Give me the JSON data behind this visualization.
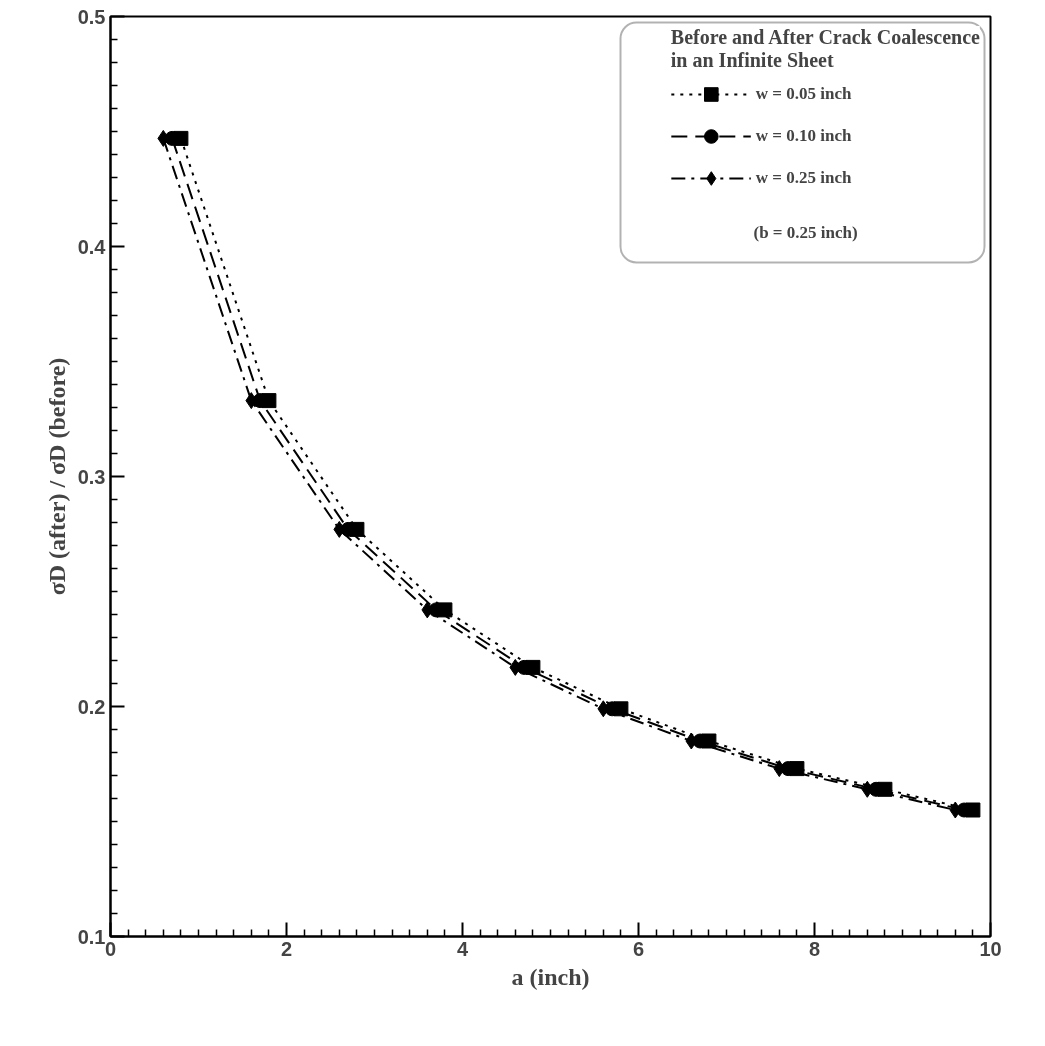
{
  "chart_data": {
    "type": "line",
    "xlabel": "a (inch)",
    "ylabel": "σD (after) / σD (before)",
    "legend_title": "Before and After Crack Coalescence\nin an Infinite Sheet",
    "annotations": [
      "(b = 0.25 inch)"
    ],
    "xlim": [
      0,
      10
    ],
    "ylim": [
      0.1,
      0.5
    ],
    "xticks": [
      0,
      2,
      4,
      6,
      8,
      10
    ],
    "yticks": [
      0.1,
      0.2,
      0.3,
      0.4,
      0.5
    ],
    "grid": false,
    "legend": "top right",
    "series": [
      {
        "name": "w = 0.05 inch",
        "color": "#000000",
        "marker": "square",
        "line_style": "dotted",
        "x": [
          0.8,
          1.8,
          2.8,
          3.8,
          4.8,
          5.8,
          6.8,
          7.8,
          8.8,
          9.8
        ],
        "values": [
          0.447,
          0.333,
          0.277,
          0.242,
          0.217,
          0.199,
          0.185,
          0.173,
          0.164,
          0.155
        ]
      },
      {
        "name": "w = 0.10 inch",
        "color": "#000000",
        "marker": "circle",
        "line_style": "dashed",
        "x": [
          0.7,
          1.7,
          2.7,
          3.7,
          4.7,
          5.7,
          6.7,
          7.7,
          8.7,
          9.7
        ],
        "values": [
          0.447,
          0.333,
          0.277,
          0.242,
          0.217,
          0.199,
          0.185,
          0.173,
          0.164,
          0.155
        ]
      },
      {
        "name": "w = 0.25 inch",
        "color": "#000000",
        "marker": "diamond",
        "line_style": "dashdot",
        "x": [
          0.6,
          1.6,
          2.6,
          3.6,
          4.6,
          5.6,
          6.6,
          7.6,
          8.6,
          9.6
        ],
        "values": [
          0.447,
          0.333,
          0.277,
          0.242,
          0.217,
          0.199,
          0.185,
          0.173,
          0.164,
          0.155
        ]
      }
    ]
  }
}
